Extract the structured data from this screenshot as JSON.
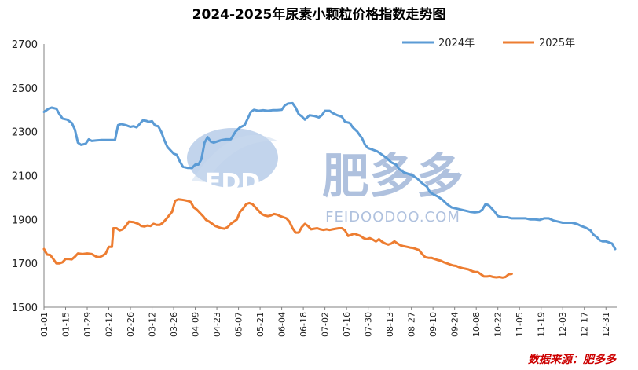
{
  "chart_data": {
    "type": "line",
    "title": "2024-2025年尿素小颗粒价格指数走势图",
    "xlabel": "",
    "ylabel": "",
    "ylim": [
      1500,
      2700
    ],
    "yticks": [
      1500,
      1700,
      1900,
      2100,
      2300,
      2500,
      2700
    ],
    "xlim": [
      0,
      371
    ],
    "xticks": [
      {
        "label": "01-01",
        "day": 0
      },
      {
        "label": "01-15",
        "day": 14
      },
      {
        "label": "01-29",
        "day": 28
      },
      {
        "label": "02-12",
        "day": 42
      },
      {
        "label": "02-26",
        "day": 56
      },
      {
        "label": "03-12",
        "day": 70
      },
      {
        "label": "03-26",
        "day": 84
      },
      {
        "label": "04-09",
        "day": 98
      },
      {
        "label": "04-23",
        "day": 112
      },
      {
        "label": "05-07",
        "day": 126
      },
      {
        "label": "05-21",
        "day": 140
      },
      {
        "label": "06-04",
        "day": 154
      },
      {
        "label": "06-18",
        "day": 168
      },
      {
        "label": "07-02",
        "day": 182
      },
      {
        "label": "07-16",
        "day": 196
      },
      {
        "label": "07-30",
        "day": 210
      },
      {
        "label": "08-13",
        "day": 224
      },
      {
        "label": "08-27",
        "day": 238
      },
      {
        "label": "09-10",
        "day": 252
      },
      {
        "label": "09-24",
        "day": 266
      },
      {
        "label": "10-08",
        "day": 280
      },
      {
        "label": "10-22",
        "day": 294
      },
      {
        "label": "11-05",
        "day": 308
      },
      {
        "label": "11-19",
        "day": 322
      },
      {
        "label": "12-03",
        "day": 336
      },
      {
        "label": "12-17",
        "day": 350
      },
      {
        "label": "12-31",
        "day": 364
      }
    ],
    "legend_position": "top-right",
    "grid": false,
    "series": [
      {
        "name": "2024年",
        "color": "#5b9bd5",
        "points": [
          [
            0,
            2390
          ],
          [
            3,
            2405
          ],
          [
            5,
            2410
          ],
          [
            8,
            2405
          ],
          [
            10,
            2380
          ],
          [
            12,
            2360
          ],
          [
            15,
            2355
          ],
          [
            18,
            2340
          ],
          [
            20,
            2310
          ],
          [
            22,
            2250
          ],
          [
            24,
            2240
          ],
          [
            27,
            2245
          ],
          [
            29,
            2265
          ],
          [
            31,
            2258
          ],
          [
            34,
            2260
          ],
          [
            37,
            2262
          ],
          [
            40,
            2262
          ],
          [
            43,
            2262
          ],
          [
            46,
            2262
          ],
          [
            48,
            2330
          ],
          [
            50,
            2335
          ],
          [
            53,
            2330
          ],
          [
            56,
            2322
          ],
          [
            58,
            2325
          ],
          [
            60,
            2320
          ],
          [
            62,
            2335
          ],
          [
            64,
            2352
          ],
          [
            66,
            2350
          ],
          [
            68,
            2345
          ],
          [
            70,
            2348
          ],
          [
            72,
            2328
          ],
          [
            74,
            2325
          ],
          [
            76,
            2300
          ],
          [
            78,
            2260
          ],
          [
            80,
            2230
          ],
          [
            82,
            2215
          ],
          [
            84,
            2200
          ],
          [
            86,
            2195
          ],
          [
            88,
            2165
          ],
          [
            90,
            2140
          ],
          [
            93,
            2135
          ],
          [
            96,
            2135
          ],
          [
            98,
            2150
          ],
          [
            100,
            2150
          ],
          [
            102,
            2175
          ],
          [
            104,
            2250
          ],
          [
            106,
            2275
          ],
          [
            108,
            2255
          ],
          [
            110,
            2250
          ],
          [
            112,
            2255
          ],
          [
            115,
            2262
          ],
          [
            118,
            2265
          ],
          [
            121,
            2265
          ],
          [
            124,
            2300
          ],
          [
            127,
            2320
          ],
          [
            130,
            2330
          ],
          [
            132,
            2360
          ],
          [
            134,
            2390
          ],
          [
            136,
            2400
          ],
          [
            139,
            2395
          ],
          [
            142,
            2398
          ],
          [
            145,
            2395
          ],
          [
            148,
            2398
          ],
          [
            151,
            2398
          ],
          [
            154,
            2400
          ],
          [
            156,
            2420
          ],
          [
            158,
            2428
          ],
          [
            161,
            2430
          ],
          [
            163,
            2410
          ],
          [
            165,
            2380
          ],
          [
            167,
            2370
          ],
          [
            169,
            2355
          ],
          [
            172,
            2375
          ],
          [
            175,
            2372
          ],
          [
            178,
            2365
          ],
          [
            180,
            2375
          ],
          [
            182,
            2395
          ],
          [
            185,
            2395
          ],
          [
            187,
            2385
          ],
          [
            190,
            2375
          ],
          [
            193,
            2368
          ],
          [
            195,
            2345
          ],
          [
            198,
            2340
          ],
          [
            200,
            2320
          ],
          [
            203,
            2300
          ],
          [
            206,
            2270
          ],
          [
            208,
            2240
          ],
          [
            210,
            2225
          ],
          [
            213,
            2218
          ],
          [
            216,
            2210
          ],
          [
            219,
            2195
          ],
          [
            222,
            2180
          ],
          [
            225,
            2160
          ],
          [
            228,
            2150
          ],
          [
            230,
            2130
          ],
          [
            233,
            2115
          ],
          [
            236,
            2108
          ],
          [
            239,
            2100
          ],
          [
            242,
            2085
          ],
          [
            245,
            2065
          ],
          [
            248,
            2050
          ],
          [
            250,
            2025
          ],
          [
            252,
            2015
          ],
          [
            255,
            2005
          ],
          [
            258,
            1990
          ],
          [
            261,
            1970
          ],
          [
            264,
            1955
          ],
          [
            267,
            1950
          ],
          [
            270,
            1945
          ],
          [
            273,
            1940
          ],
          [
            276,
            1935
          ],
          [
            279,
            1932
          ],
          [
            282,
            1935
          ],
          [
            284,
            1945
          ],
          [
            286,
            1970
          ],
          [
            288,
            1965
          ],
          [
            290,
            1950
          ],
          [
            292,
            1935
          ],
          [
            294,
            1915
          ],
          [
            297,
            1910
          ],
          [
            300,
            1910
          ],
          [
            303,
            1905
          ],
          [
            306,
            1905
          ],
          [
            309,
            1905
          ],
          [
            312,
            1905
          ],
          [
            315,
            1900
          ],
          [
            318,
            1900
          ],
          [
            321,
            1898
          ],
          [
            324,
            1905
          ],
          [
            327,
            1905
          ],
          [
            330,
            1895
          ],
          [
            333,
            1890
          ],
          [
            336,
            1885
          ],
          [
            339,
            1885
          ],
          [
            342,
            1885
          ],
          [
            345,
            1880
          ],
          [
            348,
            1870
          ],
          [
            351,
            1862
          ],
          [
            354,
            1850
          ],
          [
            356,
            1830
          ],
          [
            358,
            1820
          ],
          [
            360,
            1805
          ],
          [
            362,
            1800
          ],
          [
            364,
            1800
          ],
          [
            366,
            1795
          ],
          [
            368,
            1790
          ],
          [
            370,
            1765
          ]
        ]
      },
      {
        "name": "2025年",
        "color": "#ed7d31",
        "points": [
          [
            0,
            1765
          ],
          [
            2,
            1740
          ],
          [
            4,
            1738
          ],
          [
            6,
            1720
          ],
          [
            8,
            1700
          ],
          [
            10,
            1700
          ],
          [
            12,
            1705
          ],
          [
            14,
            1720
          ],
          [
            16,
            1720
          ],
          [
            18,
            1718
          ],
          [
            20,
            1730
          ],
          [
            22,
            1745
          ],
          [
            25,
            1742
          ],
          [
            28,
            1745
          ],
          [
            31,
            1742
          ],
          [
            34,
            1730
          ],
          [
            36,
            1728
          ],
          [
            38,
            1735
          ],
          [
            40,
            1745
          ],
          [
            42,
            1775
          ],
          [
            44,
            1775
          ],
          [
            45,
            1860
          ],
          [
            47,
            1860
          ],
          [
            49,
            1850
          ],
          [
            51,
            1855
          ],
          [
            53,
            1870
          ],
          [
            55,
            1890
          ],
          [
            58,
            1888
          ],
          [
            61,
            1880
          ],
          [
            63,
            1870
          ],
          [
            65,
            1868
          ],
          [
            67,
            1872
          ],
          [
            69,
            1870
          ],
          [
            71,
            1880
          ],
          [
            73,
            1875
          ],
          [
            75,
            1875
          ],
          [
            77,
            1885
          ],
          [
            79,
            1900
          ],
          [
            81,
            1918
          ],
          [
            83,
            1935
          ],
          [
            85,
            1985
          ],
          [
            87,
            1992
          ],
          [
            89,
            1990
          ],
          [
            91,
            1988
          ],
          [
            93,
            1985
          ],
          [
            95,
            1980
          ],
          [
            97,
            1955
          ],
          [
            99,
            1945
          ],
          [
            101,
            1930
          ],
          [
            103,
            1915
          ],
          [
            105,
            1898
          ],
          [
            107,
            1890
          ],
          [
            109,
            1880
          ],
          [
            111,
            1870
          ],
          [
            113,
            1865
          ],
          [
            115,
            1860
          ],
          [
            117,
            1858
          ],
          [
            119,
            1865
          ],
          [
            121,
            1880
          ],
          [
            123,
            1890
          ],
          [
            125,
            1900
          ],
          [
            127,
            1935
          ],
          [
            129,
            1950
          ],
          [
            131,
            1970
          ],
          [
            133,
            1975
          ],
          [
            135,
            1970
          ],
          [
            137,
            1955
          ],
          [
            139,
            1940
          ],
          [
            141,
            1925
          ],
          [
            143,
            1918
          ],
          [
            145,
            1915
          ],
          [
            147,
            1918
          ],
          [
            149,
            1925
          ],
          [
            151,
            1922
          ],
          [
            153,
            1915
          ],
          [
            155,
            1910
          ],
          [
            157,
            1905
          ],
          [
            159,
            1890
          ],
          [
            161,
            1860
          ],
          [
            163,
            1840
          ],
          [
            165,
            1840
          ],
          [
            167,
            1865
          ],
          [
            169,
            1880
          ],
          [
            171,
            1870
          ],
          [
            173,
            1855
          ],
          [
            175,
            1858
          ],
          [
            177,
            1860
          ],
          [
            179,
            1855
          ],
          [
            181,
            1852
          ],
          [
            183,
            1855
          ],
          [
            185,
            1852
          ],
          [
            187,
            1855
          ],
          [
            189,
            1858
          ],
          [
            191,
            1860
          ],
          [
            193,
            1860
          ],
          [
            195,
            1850
          ],
          [
            197,
            1825
          ],
          [
            199,
            1830
          ],
          [
            201,
            1835
          ],
          [
            203,
            1830
          ],
          [
            205,
            1825
          ],
          [
            207,
            1815
          ],
          [
            209,
            1810
          ],
          [
            211,
            1815
          ],
          [
            213,
            1808
          ],
          [
            215,
            1800
          ],
          [
            217,
            1810
          ],
          [
            219,
            1798
          ],
          [
            221,
            1790
          ],
          [
            223,
            1785
          ],
          [
            225,
            1790
          ],
          [
            227,
            1800
          ],
          [
            229,
            1790
          ],
          [
            231,
            1782
          ],
          [
            233,
            1778
          ],
          [
            235,
            1775
          ],
          [
            237,
            1772
          ],
          [
            239,
            1770
          ],
          [
            241,
            1765
          ],
          [
            243,
            1760
          ],
          [
            245,
            1742
          ],
          [
            247,
            1728
          ],
          [
            249,
            1725
          ],
          [
            251,
            1725
          ],
          [
            253,
            1720
          ],
          [
            255,
            1715
          ],
          [
            257,
            1712
          ],
          [
            259,
            1705
          ],
          [
            261,
            1700
          ],
          [
            263,
            1695
          ],
          [
            265,
            1690
          ],
          [
            267,
            1688
          ],
          [
            269,
            1682
          ],
          [
            271,
            1678
          ],
          [
            273,
            1675
          ],
          [
            275,
            1672
          ],
          [
            277,
            1665
          ],
          [
            279,
            1660
          ],
          [
            281,
            1660
          ],
          [
            283,
            1650
          ],
          [
            285,
            1640
          ],
          [
            287,
            1640
          ],
          [
            289,
            1642
          ],
          [
            291,
            1638
          ],
          [
            293,
            1636
          ],
          [
            295,
            1638
          ],
          [
            297,
            1635
          ],
          [
            299,
            1638
          ],
          [
            301,
            1650
          ],
          [
            303,
            1652
          ]
        ]
      }
    ],
    "source_note": "数据来源：肥多多"
  },
  "watermark": {
    "brand_cn": "肥多多",
    "brand_en": "FEIDOODOO.COM",
    "logo_text": "FDD"
  }
}
